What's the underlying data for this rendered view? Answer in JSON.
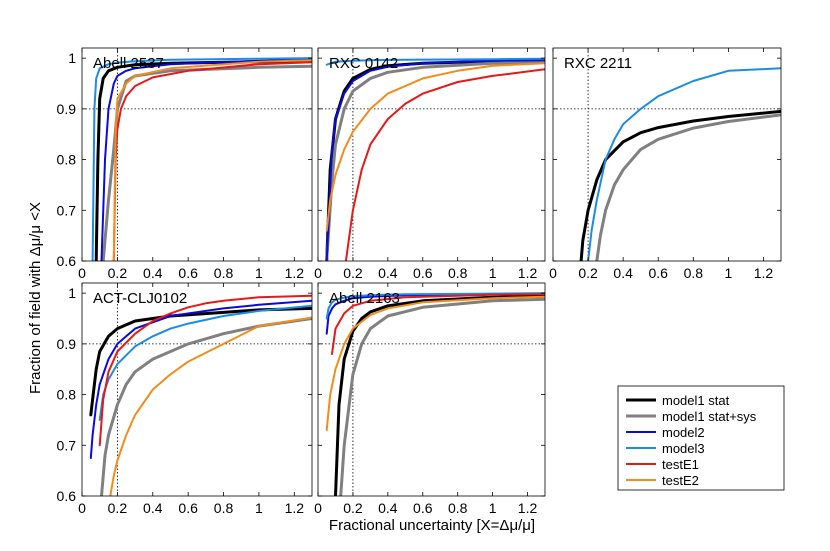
{
  "figure": {
    "ylabel": "Fraction of field with Δμ/μ <X",
    "xlabel": "Fractional uncertainty [X=Δμ/μ]"
  },
  "legend": {
    "entries": [
      {
        "name": "model1 stat",
        "color": "#000000"
      },
      {
        "name": "model1 stat+sys",
        "color": "#808080"
      },
      {
        "name": "model2",
        "color": "#0a0adc"
      },
      {
        "name": "model3",
        "color": "#1a8ce6"
      },
      {
        "name": "testE1",
        "color": "#e61818"
      },
      {
        "name": "testE2",
        "color": "#f28c1c"
      }
    ]
  },
  "chart_data": [
    {
      "type": "line",
      "title": "Abell 2537",
      "xlim": [
        0,
        1.3
      ],
      "ylim": [
        0.6,
        1.02
      ],
      "xticks": [
        "0",
        "0.2",
        "0.4",
        "0.6",
        "0.8",
        "1",
        "1.2"
      ],
      "yticks": [
        "0.6",
        "0.7",
        "0.8",
        "0.9",
        "1"
      ],
      "hline": 0.9,
      "vline": 0.2,
      "series": [
        {
          "name": "model1 stat",
          "x": [
            0.08,
            0.09,
            0.1,
            0.12,
            0.15,
            0.2,
            0.3,
            0.5,
            1.0,
            1.3
          ],
          "y": [
            0.6,
            0.8,
            0.92,
            0.96,
            0.975,
            0.982,
            0.987,
            0.99,
            0.993,
            0.994
          ]
        },
        {
          "name": "model1 stat+sys",
          "x": [
            0.12,
            0.15,
            0.18,
            0.2,
            0.25,
            0.3,
            0.5,
            1.0,
            1.3
          ],
          "y": [
            0.6,
            0.72,
            0.82,
            0.9,
            0.955,
            0.965,
            0.975,
            0.982,
            0.984
          ]
        },
        {
          "name": "model2",
          "x": [
            0.11,
            0.13,
            0.15,
            0.18,
            0.2,
            0.25,
            0.3,
            0.5,
            1.0,
            1.3
          ],
          "y": [
            0.6,
            0.8,
            0.9,
            0.95,
            0.965,
            0.975,
            0.98,
            0.988,
            0.995,
            0.997
          ]
        },
        {
          "name": "model3",
          "x": [
            0.06,
            0.07,
            0.08,
            0.1,
            0.15,
            0.2,
            0.3,
            0.5,
            1.0,
            1.3
          ],
          "y": [
            0.6,
            0.9,
            0.96,
            0.98,
            0.988,
            0.991,
            0.994,
            0.997,
            0.999,
            1.0
          ]
        },
        {
          "name": "testE1",
          "x": [
            0.18,
            0.19,
            0.2,
            0.22,
            0.25,
            0.3,
            0.4,
            0.6,
            1.0,
            1.3
          ],
          "y": [
            0.6,
            0.8,
            0.86,
            0.9,
            0.925,
            0.945,
            0.962,
            0.975,
            0.988,
            0.992
          ]
        },
        {
          "name": "testE2",
          "x": [
            0.18,
            0.19,
            0.2,
            0.25,
            0.3,
            0.5,
            1.0,
            1.3
          ],
          "y": [
            0.6,
            0.85,
            0.92,
            0.95,
            0.965,
            0.98,
            0.993,
            0.996
          ]
        }
      ]
    },
    {
      "type": "line",
      "title": "RXC 0142",
      "xlim": [
        0,
        1.3
      ],
      "ylim": [
        0.6,
        1.02
      ],
      "xticks": [
        "0",
        "0.2",
        "0.4",
        "0.6",
        "0.8",
        "1",
        "1.2"
      ],
      "yticks": [
        "0.6",
        "0.7",
        "0.8",
        "0.9",
        "1"
      ],
      "hline": 0.9,
      "vline": 0.2,
      "series": [
        {
          "name": "model1 stat",
          "x": [
            0.05,
            0.07,
            0.1,
            0.15,
            0.2,
            0.3,
            0.4,
            0.6,
            1.0,
            1.3
          ],
          "y": [
            0.6,
            0.78,
            0.88,
            0.935,
            0.96,
            0.978,
            0.985,
            0.99,
            0.994,
            0.995
          ]
        },
        {
          "name": "model1 stat+sys",
          "x": [
            0.05,
            0.08,
            0.1,
            0.15,
            0.2,
            0.3,
            0.4,
            0.6,
            1.0,
            1.3
          ],
          "y": [
            0.6,
            0.76,
            0.83,
            0.9,
            0.935,
            0.96,
            0.972,
            0.982,
            0.99,
            0.992
          ]
        },
        {
          "name": "model2",
          "x": [
            0.05,
            0.08,
            0.1,
            0.15,
            0.2,
            0.3,
            0.4,
            0.6,
            1.0,
            1.3
          ],
          "y": [
            0.6,
            0.82,
            0.88,
            0.93,
            0.955,
            0.975,
            0.983,
            0.99,
            0.995,
            0.996
          ]
        },
        {
          "name": "model3",
          "x": [
            0.05,
            0.1,
            0.2,
            0.3,
            0.5,
            1.0,
            1.3
          ],
          "y": [
            0.987,
            0.993,
            0.995,
            0.996,
            0.997,
            0.998,
            0.999
          ]
        },
        {
          "name": "testE1",
          "x": [
            0.16,
            0.2,
            0.25,
            0.3,
            0.4,
            0.5,
            0.6,
            0.8,
            1.0,
            1.3
          ],
          "y": [
            0.6,
            0.7,
            0.78,
            0.83,
            0.88,
            0.91,
            0.93,
            0.953,
            0.965,
            0.978
          ]
        },
        {
          "name": "testE2",
          "x": [
            0.05,
            0.07,
            0.1,
            0.15,
            0.2,
            0.3,
            0.4,
            0.6,
            0.8,
            1.0,
            1.3
          ],
          "y": [
            0.66,
            0.72,
            0.77,
            0.82,
            0.855,
            0.9,
            0.93,
            0.96,
            0.975,
            0.985,
            0.99
          ]
        }
      ]
    },
    {
      "type": "line",
      "title": "RXC 2211",
      "xlim": [
        0,
        1.3
      ],
      "ylim": [
        0.6,
        1.02
      ],
      "xticks": [
        "0",
        "0.2",
        "0.4",
        "0.6",
        "0.8",
        "1",
        "1.2"
      ],
      "yticks": [
        "0.6",
        "0.7",
        "0.8",
        "0.9",
        "1"
      ],
      "hline": 0.9,
      "vline": 0.2,
      "series": [
        {
          "name": "model1 stat",
          "x": [
            0.16,
            0.17,
            0.2,
            0.25,
            0.3,
            0.4,
            0.5,
            0.6,
            0.8,
            1.0,
            1.3
          ],
          "y": [
            0.6,
            0.64,
            0.7,
            0.76,
            0.8,
            0.835,
            0.853,
            0.863,
            0.876,
            0.885,
            0.895
          ]
        },
        {
          "name": "model1 stat+sys",
          "x": [
            0.25,
            0.27,
            0.3,
            0.35,
            0.4,
            0.5,
            0.6,
            0.8,
            1.0,
            1.3
          ],
          "y": [
            0.6,
            0.65,
            0.7,
            0.75,
            0.78,
            0.82,
            0.84,
            0.862,
            0.875,
            0.888
          ]
        },
        {
          "name": "model3",
          "x": [
            0.2,
            0.22,
            0.25,
            0.3,
            0.35,
            0.4,
            0.5,
            0.6,
            0.8,
            1.0,
            1.3
          ],
          "y": [
            0.6,
            0.66,
            0.72,
            0.8,
            0.84,
            0.87,
            0.9,
            0.925,
            0.955,
            0.975,
            0.98
          ]
        }
      ]
    },
    {
      "type": "line",
      "title": "ACT-CLJ0102",
      "xlim": [
        0,
        1.3
      ],
      "ylim": [
        0.6,
        1.02
      ],
      "xticks": [
        "0",
        "0.2",
        "0.4",
        "0.6",
        "0.8",
        "1",
        "1.2"
      ],
      "yticks": [
        "0.6",
        "0.7",
        "0.8",
        "0.9",
        "1"
      ],
      "hline": 0.9,
      "vline": 0.2,
      "series": [
        {
          "name": "model1 stat",
          "x": [
            0.05,
            0.06,
            0.08,
            0.1,
            0.15,
            0.2,
            0.3,
            0.5,
            0.8,
            1.0,
            1.3
          ],
          "y": [
            0.76,
            0.79,
            0.85,
            0.885,
            0.915,
            0.93,
            0.945,
            0.955,
            0.962,
            0.967,
            0.97
          ]
        },
        {
          "name": "model1 stat+sys",
          "x": [
            0.11,
            0.13,
            0.15,
            0.2,
            0.25,
            0.3,
            0.4,
            0.6,
            0.8,
            1.0,
            1.3
          ],
          "y": [
            0.6,
            0.68,
            0.72,
            0.78,
            0.82,
            0.845,
            0.87,
            0.9,
            0.92,
            0.935,
            0.95
          ]
        },
        {
          "name": "model2",
          "x": [
            0.05,
            0.06,
            0.08,
            0.1,
            0.15,
            0.2,
            0.3,
            0.5,
            0.8,
            1.0,
            1.3
          ],
          "y": [
            0.675,
            0.72,
            0.78,
            0.82,
            0.87,
            0.9,
            0.93,
            0.955,
            0.97,
            0.977,
            0.985
          ]
        },
        {
          "name": "model3",
          "x": [
            0.1,
            0.12,
            0.15,
            0.2,
            0.3,
            0.4,
            0.5,
            0.6,
            0.8,
            1.0,
            1.3
          ],
          "y": [
            0.75,
            0.8,
            0.83,
            0.86,
            0.895,
            0.915,
            0.93,
            0.94,
            0.955,
            0.965,
            0.975
          ]
        },
        {
          "name": "testE1",
          "x": [
            0.1,
            0.12,
            0.15,
            0.2,
            0.3,
            0.4,
            0.5,
            0.6,
            0.7,
            0.8,
            1.0,
            1.3
          ],
          "y": [
            0.7,
            0.79,
            0.845,
            0.885,
            0.92,
            0.945,
            0.96,
            0.972,
            0.98,
            0.985,
            0.992,
            0.995
          ]
        },
        {
          "name": "testE2",
          "x": [
            0.16,
            0.18,
            0.2,
            0.25,
            0.3,
            0.4,
            0.5,
            0.6,
            0.8,
            1.0,
            1.3
          ],
          "y": [
            0.6,
            0.64,
            0.67,
            0.72,
            0.76,
            0.81,
            0.84,
            0.865,
            0.9,
            0.935,
            0.952
          ]
        }
      ]
    },
    {
      "type": "line",
      "title": "Abell 2163",
      "xlim": [
        0,
        1.3
      ],
      "ylim": [
        0.6,
        1.02
      ],
      "xticks": [
        "0",
        "0.2",
        "0.4",
        "0.6",
        "0.8",
        "1",
        "1.2"
      ],
      "yticks": [
        "0.6",
        "0.7",
        "0.8",
        "0.9",
        "1"
      ],
      "hline": 0.9,
      "vline": 0.2,
      "series": [
        {
          "name": "model1 stat",
          "x": [
            0.1,
            0.12,
            0.15,
            0.2,
            0.25,
            0.3,
            0.4,
            0.6,
            1.0,
            1.3
          ],
          "y": [
            0.6,
            0.78,
            0.87,
            0.925,
            0.95,
            0.963,
            0.975,
            0.985,
            0.992,
            0.994
          ]
        },
        {
          "name": "model1 stat+sys",
          "x": [
            0.13,
            0.15,
            0.2,
            0.25,
            0.3,
            0.4,
            0.6,
            1.0,
            1.3
          ],
          "y": [
            0.6,
            0.7,
            0.84,
            0.9,
            0.93,
            0.955,
            0.972,
            0.985,
            0.988
          ]
        },
        {
          "name": "model2",
          "x": [
            0.05,
            0.06,
            0.08,
            0.1,
            0.15,
            0.2,
            0.3,
            0.5,
            1.0,
            1.3
          ],
          "y": [
            0.92,
            0.955,
            0.97,
            0.978,
            0.985,
            0.99,
            0.993,
            0.996,
            0.998,
            0.999
          ]
        },
        {
          "name": "model3",
          "x": [
            0.05,
            0.06,
            0.08,
            0.1,
            0.15,
            0.2,
            0.3,
            0.5,
            1.0,
            1.3
          ],
          "y": [
            0.95,
            0.97,
            0.982,
            0.987,
            0.991,
            0.994,
            0.996,
            0.998,
            0.999,
            1.0
          ]
        },
        {
          "name": "testE1",
          "x": [
            0.08,
            0.1,
            0.15,
            0.2,
            0.3,
            0.5,
            1.0,
            1.3
          ],
          "y": [
            0.88,
            0.93,
            0.96,
            0.975,
            0.985,
            0.992,
            0.997,
            0.998
          ]
        },
        {
          "name": "testE2",
          "x": [
            0.05,
            0.07,
            0.1,
            0.15,
            0.2,
            0.3,
            0.4,
            0.6,
            1.0,
            1.3
          ],
          "y": [
            0.73,
            0.8,
            0.85,
            0.9,
            0.93,
            0.957,
            0.97,
            0.982,
            0.99,
            0.993
          ]
        }
      ]
    }
  ]
}
